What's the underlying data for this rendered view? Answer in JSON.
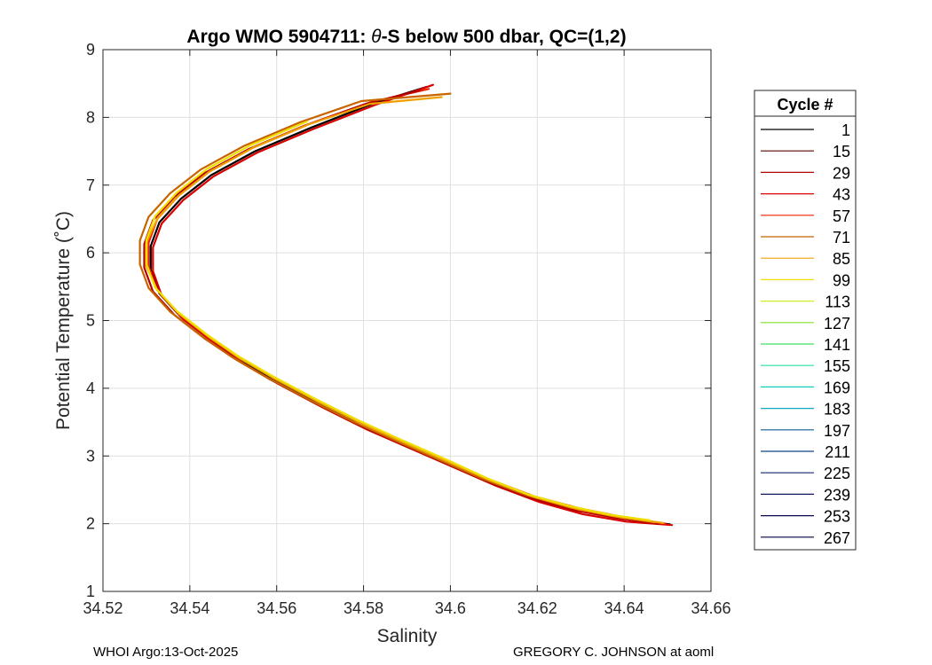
{
  "chart_data": {
    "type": "line",
    "title_prefix": "Argo WMO 5904711: ",
    "title_symbol": "θ",
    "title_suffix": "-S below 500 dbar,  QC=(1,2)",
    "xlabel": "Salinity",
    "ylabel": "Potential Temperature (˚C)",
    "xlim": [
      34.52,
      34.66
    ],
    "ylim": [
      1,
      9
    ],
    "x_ticks": [
      "34.52",
      "34.54",
      "34.56",
      "34.58",
      "34.6",
      "34.62",
      "34.64",
      "34.66"
    ],
    "y_ticks": [
      "1",
      "2",
      "3",
      "4",
      "5",
      "6",
      "7",
      "8",
      "9"
    ],
    "grid": true,
    "legend_position": "right",
    "legend_title": "Cycle #",
    "legend": [
      {
        "label": "1",
        "color": "#000000"
      },
      {
        "label": "15",
        "color": "#5a0000"
      },
      {
        "label": "29",
        "color": "#b40000"
      },
      {
        "label": "43",
        "color": "#d80000"
      },
      {
        "label": "57",
        "color": "#f02000"
      },
      {
        "label": "71",
        "color": "#c86400"
      },
      {
        "label": "85",
        "color": "#f0a000"
      },
      {
        "label": "99",
        "color": "#f0e000"
      },
      {
        "label": "113",
        "color": "#c8f020"
      },
      {
        "label": "127",
        "color": "#80e030"
      },
      {
        "label": "141",
        "color": "#40e060"
      },
      {
        "label": "155",
        "color": "#20e0a0"
      },
      {
        "label": "169",
        "color": "#10d0c0"
      },
      {
        "label": "183",
        "color": "#10a8c0"
      },
      {
        "label": "197",
        "color": "#106090"
      },
      {
        "label": "211",
        "color": "#104080"
      },
      {
        "label": "225",
        "color": "#102870"
      },
      {
        "label": "239",
        "color": "#101860"
      },
      {
        "label": "253",
        "color": "#080850"
      },
      {
        "label": "267",
        "color": "#000040"
      }
    ],
    "series": [
      {
        "color": "#000000",
        "points": [
          [
            34.6505,
            1.99
          ],
          [
            34.64,
            2.07
          ],
          [
            34.63,
            2.19
          ],
          [
            34.62,
            2.36
          ],
          [
            34.61,
            2.6
          ],
          [
            34.6,
            2.88
          ],
          [
            34.59,
            3.16
          ],
          [
            34.58,
            3.44
          ],
          [
            34.57,
            3.76
          ],
          [
            34.56,
            4.1
          ],
          [
            34.552,
            4.4
          ],
          [
            34.545,
            4.7
          ],
          [
            34.538,
            5.05
          ],
          [
            34.533,
            5.4
          ],
          [
            34.531,
            5.75
          ],
          [
            34.531,
            6.1
          ],
          [
            34.533,
            6.45
          ],
          [
            34.538,
            6.8
          ],
          [
            34.545,
            7.15
          ],
          [
            34.555,
            7.5
          ],
          [
            34.568,
            7.85
          ],
          [
            34.582,
            8.2
          ],
          [
            34.5945,
            8.45
          ]
        ]
      },
      {
        "color": "#d80000",
        "points": [
          [
            34.651,
            1.98
          ],
          [
            34.6405,
            2.03
          ],
          [
            34.6305,
            2.14
          ],
          [
            34.6205,
            2.32
          ],
          [
            34.6105,
            2.56
          ],
          [
            34.6005,
            2.84
          ],
          [
            34.5905,
            3.12
          ],
          [
            34.5805,
            3.4
          ],
          [
            34.5705,
            3.72
          ],
          [
            34.5605,
            4.06
          ],
          [
            34.5525,
            4.36
          ],
          [
            34.5455,
            4.67
          ],
          [
            34.5385,
            5.02
          ],
          [
            34.5335,
            5.37
          ],
          [
            34.5315,
            5.73
          ],
          [
            34.5315,
            6.08
          ],
          [
            34.5335,
            6.43
          ],
          [
            34.5385,
            6.78
          ],
          [
            34.5455,
            7.13
          ],
          [
            34.5555,
            7.48
          ],
          [
            34.5685,
            7.83
          ],
          [
            34.5825,
            8.18
          ],
          [
            34.596,
            8.48
          ]
        ]
      },
      {
        "color": "#f02000",
        "points": [
          [
            34.6495,
            2.0
          ],
          [
            34.6395,
            2.1
          ],
          [
            34.6295,
            2.23
          ],
          [
            34.6195,
            2.4
          ],
          [
            34.6095,
            2.64
          ],
          [
            34.5995,
            2.92
          ],
          [
            34.5895,
            3.2
          ],
          [
            34.5795,
            3.49
          ],
          [
            34.5695,
            3.81
          ],
          [
            34.5595,
            4.15
          ],
          [
            34.5515,
            4.45
          ],
          [
            34.5445,
            4.75
          ],
          [
            34.5375,
            5.1
          ],
          [
            34.5325,
            5.45
          ],
          [
            34.5305,
            5.8
          ],
          [
            34.5305,
            6.15
          ],
          [
            34.5325,
            6.5
          ],
          [
            34.5375,
            6.85
          ],
          [
            34.5445,
            7.2
          ],
          [
            34.5545,
            7.55
          ],
          [
            34.5675,
            7.9
          ],
          [
            34.5815,
            8.22
          ],
          [
            34.595,
            8.42
          ]
        ]
      },
      {
        "color": "#b40000",
        "points": [
          [
            34.648,
            2.0
          ],
          [
            34.6385,
            2.08
          ],
          [
            34.6285,
            2.2
          ],
          [
            34.6185,
            2.38
          ],
          [
            34.6085,
            2.62
          ],
          [
            34.5985,
            2.9
          ],
          [
            34.5885,
            3.18
          ],
          [
            34.5785,
            3.47
          ],
          [
            34.5685,
            3.79
          ],
          [
            34.5585,
            4.13
          ],
          [
            34.5505,
            4.43
          ],
          [
            34.5435,
            4.73
          ],
          [
            34.5365,
            5.08
          ],
          [
            34.5315,
            5.43
          ],
          [
            34.5295,
            5.78
          ],
          [
            34.5295,
            6.13
          ],
          [
            34.5315,
            6.48
          ],
          [
            34.5365,
            6.83
          ],
          [
            34.5435,
            7.18
          ],
          [
            34.5535,
            7.53
          ],
          [
            34.5665,
            7.88
          ],
          [
            34.5805,
            8.2
          ],
          [
            34.593,
            8.4
          ]
        ]
      },
      {
        "color": "#c86400",
        "points": [
          [
            34.647,
            2.02
          ],
          [
            34.6375,
            2.11
          ],
          [
            34.6275,
            2.24
          ],
          [
            34.6175,
            2.42
          ],
          [
            34.6075,
            2.66
          ],
          [
            34.5975,
            2.94
          ],
          [
            34.5875,
            3.22
          ],
          [
            34.5775,
            3.51
          ],
          [
            34.5675,
            3.83
          ],
          [
            34.5575,
            4.17
          ],
          [
            34.5495,
            4.47
          ],
          [
            34.5425,
            4.78
          ],
          [
            34.5355,
            5.13
          ],
          [
            34.5305,
            5.48
          ],
          [
            34.5285,
            5.83
          ],
          [
            34.5285,
            6.18
          ],
          [
            34.5305,
            6.53
          ],
          [
            34.5355,
            6.88
          ],
          [
            34.5425,
            7.23
          ],
          [
            34.5525,
            7.58
          ],
          [
            34.5655,
            7.93
          ],
          [
            34.5795,
            8.24
          ],
          [
            34.6,
            8.35
          ]
        ]
      },
      {
        "color": "#f0a000",
        "points": [
          [
            34.649,
            2.01
          ],
          [
            34.6395,
            2.09
          ],
          [
            34.6295,
            2.21
          ],
          [
            34.6195,
            2.39
          ],
          [
            34.6095,
            2.63
          ],
          [
            34.5995,
            2.91
          ],
          [
            34.5895,
            3.19
          ],
          [
            34.5795,
            3.48
          ],
          [
            34.5695,
            3.8
          ],
          [
            34.5595,
            4.14
          ],
          [
            34.5515,
            4.44
          ],
          [
            34.5445,
            4.75
          ],
          [
            34.5375,
            5.1
          ],
          [
            34.5325,
            5.45
          ],
          [
            34.53,
            5.8
          ],
          [
            34.53,
            6.15
          ],
          [
            34.5325,
            6.5
          ],
          [
            34.5375,
            6.85
          ],
          [
            34.5445,
            7.2
          ],
          [
            34.5545,
            7.55
          ],
          [
            34.5675,
            7.9
          ],
          [
            34.5815,
            8.2
          ],
          [
            34.598,
            8.3
          ]
        ]
      },
      {
        "color": "#f0e000",
        "points": [
          [
            34.646,
            2.05
          ],
          [
            34.637,
            2.13
          ],
          [
            34.6275,
            2.26
          ],
          [
            34.618,
            2.43
          ],
          [
            34.6085,
            2.67
          ],
          [
            34.599,
            2.95
          ],
          [
            34.589,
            3.23
          ],
          [
            34.579,
            3.52
          ],
          [
            34.569,
            3.84
          ],
          [
            34.559,
            4.18
          ],
          [
            34.551,
            4.48
          ],
          [
            34.544,
            4.79
          ],
          [
            34.537,
            5.14
          ],
          [
            34.532,
            5.49
          ],
          [
            34.53,
            5.84
          ],
          [
            34.53,
            6.19
          ],
          [
            34.532,
            6.54
          ],
          [
            34.537,
            6.89
          ],
          [
            34.544,
            7.24
          ],
          [
            34.554,
            7.59
          ],
          [
            34.567,
            7.94
          ]
        ]
      }
    ]
  },
  "footer": {
    "left": "WHOI Argo:13-Oct-2025",
    "right": "GREGORY C. JOHNSON at aoml"
  }
}
